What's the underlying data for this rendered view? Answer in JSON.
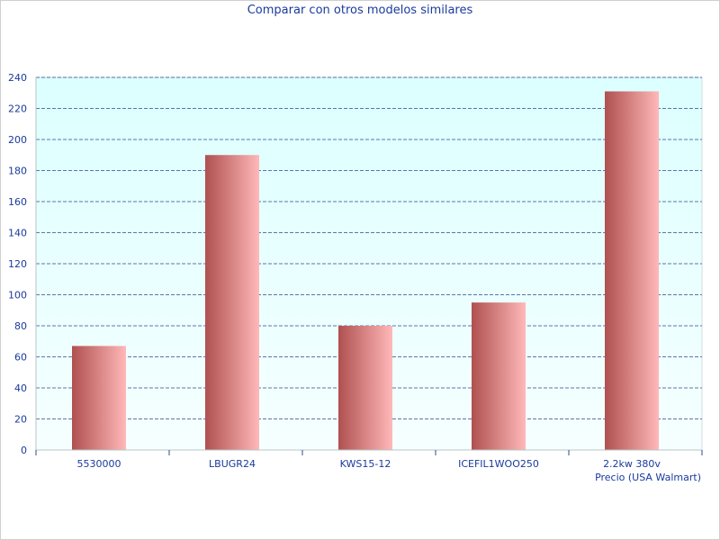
{
  "chart_data": {
    "type": "bar",
    "title": "Comparar con otros modelos similares",
    "xlabel": "Precio (USA Walmart)",
    "ylabel": "",
    "categories": [
      "5530000",
      "LBUGR24",
      "KWS15-12",
      "ICEFIL1WOO250",
      "2.2kw 380v"
    ],
    "values": [
      67,
      190,
      80,
      95,
      231
    ],
    "ylim": [
      0,
      240
    ],
    "yticks": [
      "0",
      "20",
      "40",
      "60",
      "80",
      "100",
      "120",
      "140",
      "160",
      "180",
      "200",
      "220",
      "240"
    ],
    "grid": true,
    "legend": "none",
    "colors": {
      "bar_dark": "#b05050",
      "bar_light": "#ffb8b8",
      "plot_bg_top": "#dcffff",
      "plot_bg_bottom": "#f6ffff",
      "grid": "#2c4a8c",
      "text": "#1a3a9c"
    }
  }
}
